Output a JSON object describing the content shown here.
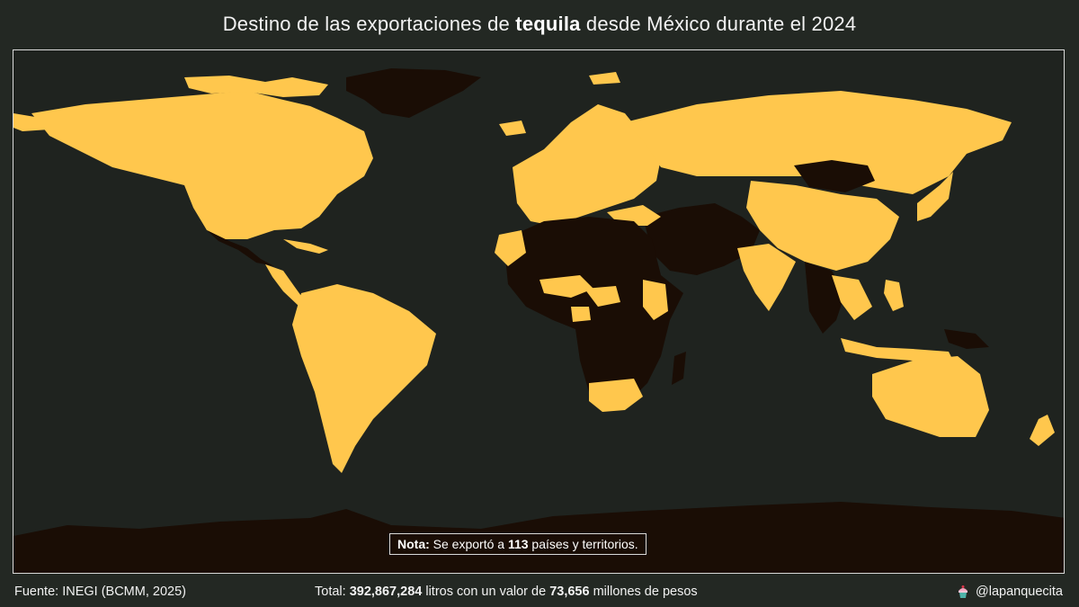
{
  "title": {
    "before": "Destino de las exportaciones de ",
    "bold": "tequila",
    "after": " desde México durante el 2024"
  },
  "note": {
    "label": "Nota:",
    "before": " Se exportó a ",
    "count": "113",
    "after": " países y territorios."
  },
  "footer": {
    "source": "Fuente: INEGI (BCMM, 2025)",
    "total_prefix": "Total: ",
    "liters": "392,867,284",
    "mid_text": " litros con un valor de ",
    "value": "73,656",
    "suffix": " millones de pesos",
    "handle": "@lapanquecita",
    "handle_icon": "cupcake-icon"
  },
  "colors": {
    "exported": "#ffc74d",
    "not_exported": "#1a0d05",
    "ocean": "#1f231f",
    "background": "#232823"
  }
}
